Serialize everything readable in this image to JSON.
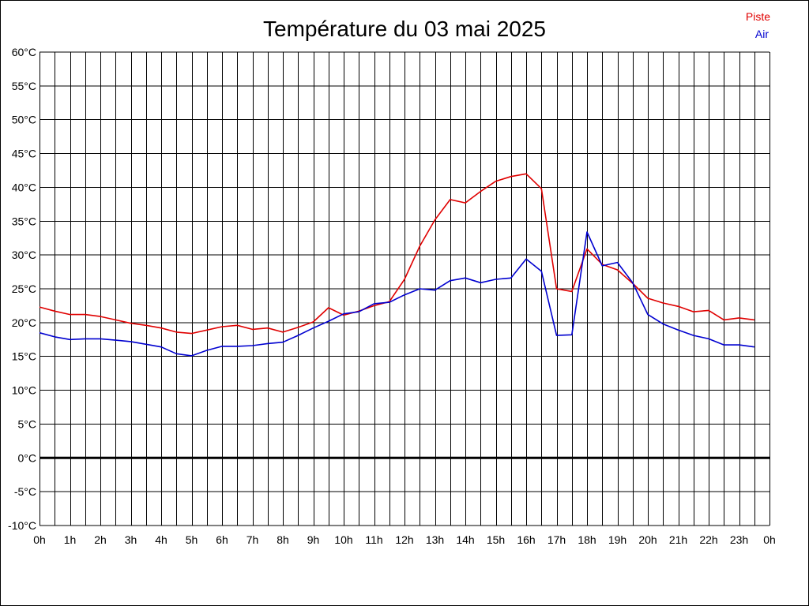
{
  "chart_data": {
    "type": "line",
    "title": "Température du 03 mai 2025",
    "xlabel": "",
    "ylabel": "",
    "ylim": [
      -10,
      60
    ],
    "xlim": [
      0,
      24
    ],
    "grid": true,
    "legend_position": "top-right",
    "y_ticks": [
      "60°C",
      "55°C",
      "50°C",
      "45°C",
      "40°C",
      "35°C",
      "30°C",
      "25°C",
      "20°C",
      "15°C",
      "10°C",
      "5°C",
      "0°C",
      "-5°C",
      "-10°C"
    ],
    "y_tick_values": [
      60,
      55,
      50,
      45,
      40,
      35,
      30,
      25,
      20,
      15,
      10,
      5,
      0,
      -5,
      -10
    ],
    "x_ticks": [
      "0h",
      "1h",
      "2h",
      "3h",
      "4h",
      "5h",
      "6h",
      "7h",
      "8h",
      "9h",
      "10h",
      "11h",
      "12h",
      "13h",
      "14h",
      "15h",
      "16h",
      "17h",
      "18h",
      "19h",
      "20h",
      "21h",
      "22h",
      "23h",
      "0h"
    ],
    "x": [
      0,
      0.5,
      1,
      1.5,
      2,
      2.5,
      3,
      3.5,
      4,
      4.5,
      5,
      5.5,
      6,
      6.5,
      7,
      7.5,
      8,
      8.5,
      9,
      9.5,
      10,
      10.5,
      11,
      11.5,
      12,
      12.5,
      13,
      13.5,
      14,
      14.5,
      15,
      15.5,
      16,
      16.5,
      17,
      17.5,
      18,
      18.5,
      19,
      19.5,
      20,
      20.5,
      21,
      21.5,
      22,
      22.5,
      23,
      23.5
    ],
    "series": [
      {
        "name": "Piste",
        "color": "#e00000",
        "values": [
          22.3,
          21.7,
          21.2,
          21.2,
          20.9,
          20.4,
          19.9,
          19.6,
          19.2,
          18.6,
          18.4,
          18.9,
          19.4,
          19.6,
          19.0,
          19.2,
          18.6,
          19.3,
          20.1,
          22.2,
          21.1,
          21.7,
          22.5,
          23.1,
          26.4,
          31.3,
          35.2,
          38.2,
          37.7,
          39.4,
          40.9,
          41.6,
          42.0,
          39.8,
          25.0,
          24.6,
          30.9,
          28.6,
          27.8,
          25.8,
          23.6,
          22.9,
          22.4,
          21.6,
          21.8,
          20.4,
          20.7,
          20.4
        ]
      },
      {
        "name": "Air",
        "color": "#0000d0",
        "values": [
          18.5,
          17.9,
          17.5,
          17.6,
          17.6,
          17.4,
          17.2,
          16.8,
          16.4,
          15.4,
          15.1,
          15.9,
          16.5,
          16.5,
          16.6,
          16.9,
          17.1,
          18.1,
          19.2,
          20.2,
          21.3,
          21.6,
          22.8,
          23.0,
          24.1,
          25.0,
          24.8,
          26.2,
          26.6,
          25.9,
          26.4,
          26.6,
          29.4,
          27.6,
          18.1,
          18.2,
          33.4,
          28.4,
          28.9,
          25.9,
          21.2,
          19.8,
          18.9,
          18.1,
          17.6,
          16.7,
          16.7,
          16.4
        ]
      }
    ],
    "baseline_value": 0
  }
}
